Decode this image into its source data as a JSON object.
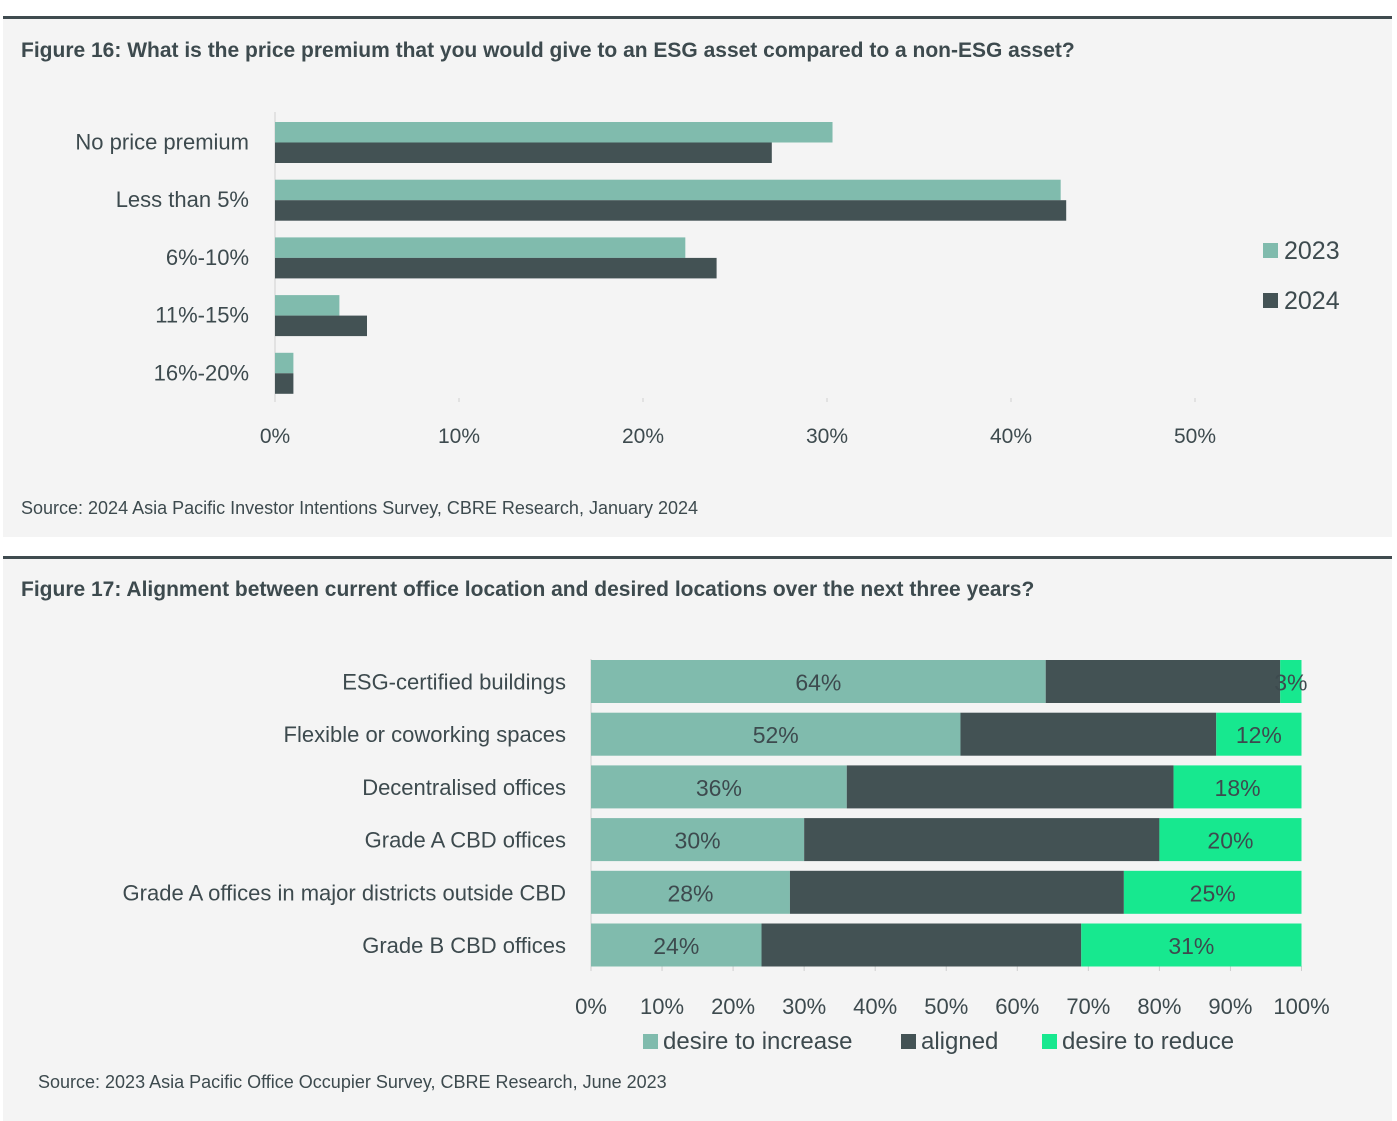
{
  "figure16": {
    "title": "Figure 16: What is the price premium that you would give to an ESG asset compared to a non-ESG asset?",
    "source": "Source: 2024 Asia Pacific Investor Intentions Survey, CBRE Research, January 2024"
  },
  "figure17": {
    "title": "Figure 17: Alignment between current office location and desired locations over the next three years?",
    "source": "Source: 2023 Asia Pacific Office Occupier Survey, CBRE Research, June 2023"
  },
  "chart_data": [
    {
      "type": "bar",
      "orientation": "horizontal",
      "categories": [
        "No price premium",
        "Less than 5%",
        "6%-10%",
        "11%-15%",
        "16%-20%"
      ],
      "series": [
        {
          "name": "2023",
          "color": "#80bbad",
          "values": [
            30.3,
            42.7,
            22.3,
            3.5,
            1.0
          ]
        },
        {
          "name": "2024",
          "color": "#435254",
          "values": [
            27.0,
            43.0,
            24.0,
            5.0,
            1.0
          ]
        }
      ],
      "xlim": [
        0,
        50
      ],
      "xticks": [
        0,
        10,
        20,
        30,
        40,
        50
      ],
      "tick_labels": [
        "0%",
        "10%",
        "20%",
        "30%",
        "40%",
        "50%"
      ],
      "legend_position": "right",
      "grid": false
    },
    {
      "type": "bar",
      "orientation": "horizontal",
      "stacked": true,
      "categories": [
        "ESG-certified buildings",
        "Flexible or coworking spaces",
        "Decentralised offices",
        "Grade A CBD offices",
        "Grade A offices in major districts outside CBD",
        "Grade B CBD offices"
      ],
      "series": [
        {
          "name": "desire to increase",
          "color": "#80bbad",
          "values": [
            64,
            52,
            36,
            30,
            28,
            24
          ],
          "labels": [
            "64%",
            "52%",
            "36%",
            "30%",
            "28%",
            "24%"
          ]
        },
        {
          "name": "aligned",
          "color": "#435254",
          "values": [
            33,
            36,
            46,
            50,
            47,
            45
          ]
        },
        {
          "name": "desire to reduce",
          "color": "#17e88f",
          "values": [
            3,
            12,
            18,
            20,
            25,
            31
          ],
          "labels": [
            "3%",
            "12%",
            "18%",
            "20%",
            "25%",
            "31%"
          ]
        }
      ],
      "xlim": [
        0,
        100
      ],
      "xticks": [
        0,
        10,
        20,
        30,
        40,
        50,
        60,
        70,
        80,
        90,
        100
      ],
      "tick_labels": [
        "0%",
        "10%",
        "20%",
        "30%",
        "40%",
        "50%",
        "60%",
        "70%",
        "80%",
        "90%",
        "100%"
      ],
      "legend_position": "bottom",
      "grid": false
    }
  ]
}
